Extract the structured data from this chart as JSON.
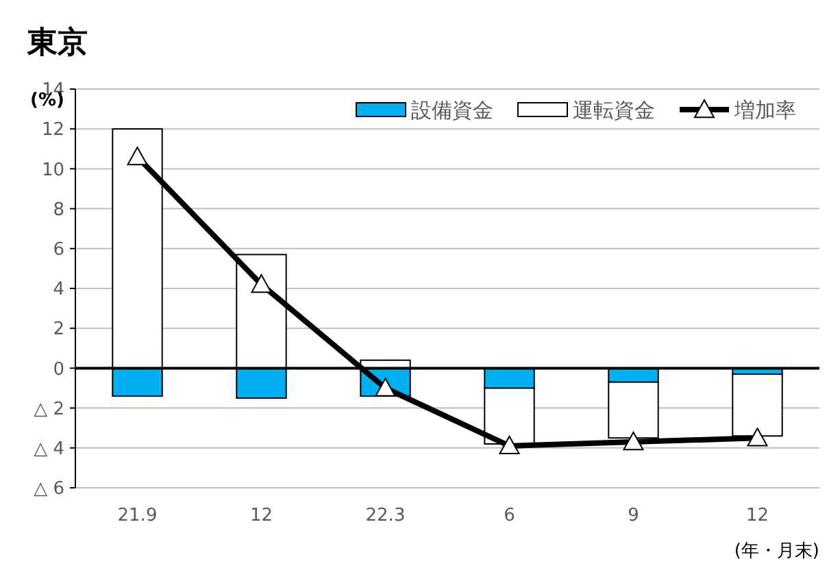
{
  "chart_data": {
    "type": "bar",
    "title": "東京",
    "ylabel": "(%)",
    "xlabel": "(年・月末)",
    "categories": [
      "21.9",
      "12",
      "22.3",
      "6",
      "9",
      "12"
    ],
    "stacked": true,
    "series": [
      {
        "name": "設備資金",
        "color": "#00b0f0",
        "values": [
          -1.4,
          -1.5,
          -1.4,
          -1.0,
          -0.7,
          -0.3
        ]
      },
      {
        "name": "運転資金",
        "color": "#ffffff",
        "values": [
          12.0,
          5.7,
          0.4,
          -2.8,
          -2.8,
          -3.1
        ]
      },
      {
        "name": "増加率",
        "type": "line",
        "color": "#000000",
        "marker": "triangle",
        "values": [
          10.6,
          4.2,
          -1.0,
          -3.9,
          -3.7,
          -3.5
        ]
      }
    ],
    "ylim": [
      -6,
      14
    ],
    "yticks": [
      {
        "value": -6,
        "label": "△ 6"
      },
      {
        "value": -4,
        "label": "△ 4"
      },
      {
        "value": -2,
        "label": "△ 2"
      },
      0,
      2,
      4,
      6,
      8,
      10,
      12,
      14
    ],
    "grid": "y",
    "legend": "top right"
  }
}
